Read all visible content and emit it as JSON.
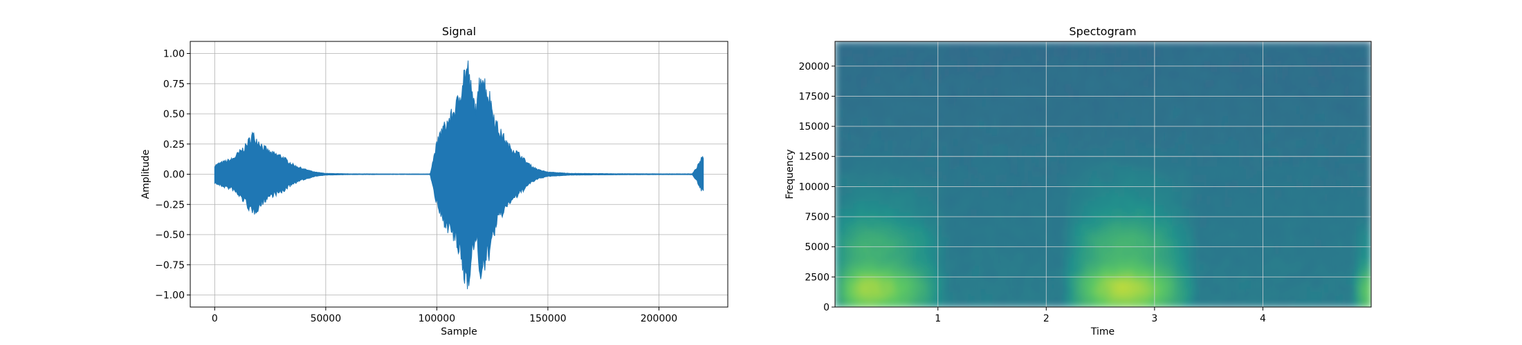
{
  "chart_data": [
    {
      "type": "line",
      "title": "Signal",
      "xlabel": "Sample",
      "ylabel": "Amplitude",
      "xlim": [
        -11000,
        231000
      ],
      "ylim": [
        -1.1,
        1.1
      ],
      "grid": true,
      "line_color": "#1f77b4",
      "x_ticks": [
        0,
        50000,
        100000,
        150000,
        200000
      ],
      "x_tick_labels": [
        "0",
        "50000",
        "100000",
        "150000",
        "200000"
      ],
      "y_ticks": [
        1.0,
        0.75,
        0.5,
        0.25,
        0.0,
        -0.25,
        -0.5,
        -0.75,
        -1.0
      ],
      "y_tick_labels": [
        "1.00",
        "0.75",
        "0.50",
        "0.25",
        "0.00",
        "−0.25",
        "−0.50",
        "−0.75",
        "−1.00"
      ],
      "series": [
        {
          "x": [
            0,
            2000,
            5000,
            8000,
            10000,
            12000,
            14000,
            16000,
            17000,
            18000,
            20000,
            22000,
            25000,
            28000,
            30000,
            33000,
            36000,
            40000,
            45000,
            50000,
            60000,
            80000,
            97000,
            98000,
            100000,
            102000,
            104000,
            106000,
            108000,
            110000,
            112000,
            114000,
            116000,
            118000,
            120000,
            122000,
            124000,
            126000,
            128000,
            130000,
            132000,
            135000,
            138000,
            140000,
            143000,
            146000,
            150000,
            160000,
            180000,
            200000,
            215000,
            217000,
            218000,
            219000,
            220000
          ],
          "envelope": [
            0.08,
            0.1,
            0.12,
            0.14,
            0.18,
            0.22,
            0.26,
            0.33,
            0.37,
            0.34,
            0.3,
            0.25,
            0.2,
            0.18,
            0.17,
            0.12,
            0.08,
            0.05,
            0.02,
            0.008,
            0.004,
            0.003,
            0.003,
            0.1,
            0.28,
            0.4,
            0.46,
            0.52,
            0.6,
            0.7,
            0.92,
            0.99,
            0.7,
            0.6,
            0.99,
            0.8,
            0.7,
            0.52,
            0.4,
            0.35,
            0.27,
            0.22,
            0.17,
            0.12,
            0.07,
            0.04,
            0.02,
            0.008,
            0.005,
            0.004,
            0.004,
            0.06,
            0.1,
            0.14,
            0.15
          ]
        }
      ]
    },
    {
      "type": "heatmap",
      "title": "Spectogram",
      "xlabel": "Time",
      "ylabel": "Frequency",
      "xlim": [
        0.05,
        5.0
      ],
      "ylim": [
        0,
        22050
      ],
      "grid": true,
      "x_ticks": [
        1,
        2,
        3,
        4
      ],
      "x_tick_labels": [
        "1",
        "2",
        "3",
        "4"
      ],
      "y_ticks": [
        0,
        2500,
        5000,
        7500,
        10000,
        12500,
        15000,
        17500,
        20000
      ],
      "y_tick_labels": [
        "0",
        "2500",
        "5000",
        "7500",
        "10000",
        "12500",
        "15000",
        "17500",
        "20000"
      ],
      "colormap": [
        "#440154",
        "#3b528b",
        "#21918c",
        "#5ec962",
        "#fde725"
      ],
      "bursts": [
        {
          "t_start": 0.05,
          "t_peak": 0.35,
          "t_end": 1.0,
          "max_freq": 13000,
          "strength": 1.0
        },
        {
          "t_start": 2.2,
          "t_peak": 2.75,
          "t_end": 3.3,
          "max_freq": 14000,
          "strength": 1.05
        },
        {
          "t_start": 4.88,
          "t_peak": 5.0,
          "t_end": 5.0,
          "max_freq": 6000,
          "strength": 0.85
        }
      ]
    }
  ]
}
